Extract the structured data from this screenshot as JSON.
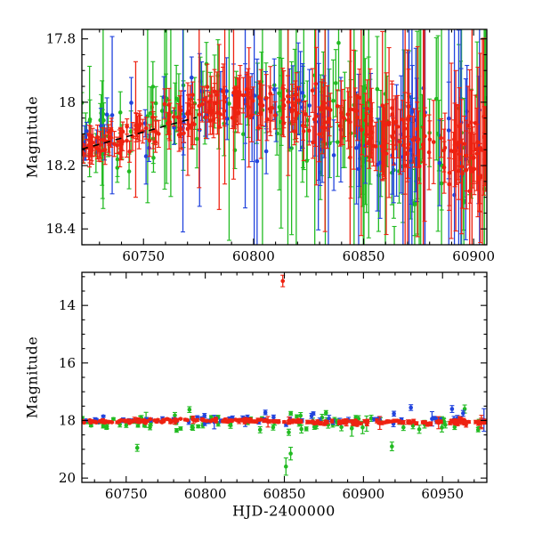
{
  "figure": {
    "ylabel": "Magnitude",
    "xlabel": "HJD-2400000",
    "background": "#ffffff",
    "axis_color": "#000000"
  },
  "chart_data": [
    {
      "id": "top-panel",
      "type": "scatter",
      "title": "",
      "xlabel": "",
      "ylabel": "Magnitude",
      "xlim": [
        60722,
        60906
      ],
      "ylim": [
        17.77,
        18.45
      ],
      "y_inverted_magnitude_axis": true,
      "xticks": [
        60750,
        60800,
        60850,
        60900
      ],
      "xtick_labels": [
        "60750",
        "60800",
        "60850",
        "60900"
      ],
      "yticks": [
        17.8,
        18.0,
        18.2,
        18.4
      ],
      "ytick_labels": [
        "17.8",
        "18",
        "18.2",
        "18.4"
      ],
      "x_minor_step": 10,
      "y_minor_step": 0.05,
      "grid": false,
      "legend": false,
      "fit_line": {
        "color": "#000000",
        "dash": "7 6",
        "x": [
          60722,
          60774
        ],
        "y": [
          18.148,
          18.048
        ]
      },
      "series": [
        {
          "name": "series-green",
          "color": "#22bb22",
          "n": 150,
          "seed": 42,
          "trend": [
            [
              60722,
              18.13
            ],
            [
              60785,
              18.0
            ],
            [
              60850,
              18.09
            ],
            [
              60906,
              18.16
            ]
          ],
          "sigma": [
            0.05,
            0.11
          ],
          "err": [
            0.05,
            0.16
          ],
          "big_err_prob": [
            0.05,
            0.32
          ],
          "big_err_scale": 3.5
        },
        {
          "name": "series-blue",
          "color": "#2244dd",
          "n": 85,
          "seed": 77,
          "trend": [
            [
              60722,
              18.12
            ],
            [
              60790,
              18.02
            ],
            [
              60850,
              18.1
            ],
            [
              60906,
              18.15
            ]
          ],
          "sigma": [
            0.04,
            0.1
          ],
          "err": [
            0.04,
            0.2
          ],
          "big_err_prob": [
            0.04,
            0.35
          ],
          "big_err_scale": 3.5
        },
        {
          "name": "series-red",
          "color": "#ee2211",
          "n": 310,
          "seed": 5,
          "trend": [
            [
              60722,
              18.15
            ],
            [
              60760,
              18.07
            ],
            [
              60790,
              17.99
            ],
            [
              60830,
              18.05
            ],
            [
              60860,
              18.1
            ],
            [
              60906,
              18.17
            ]
          ],
          "sigma": [
            0.022,
            0.055
          ],
          "err": [
            0.03,
            0.1
          ],
          "big_err_prob": [
            0.02,
            0.22
          ],
          "big_err_scale": 3.0
        }
      ],
      "outliers": []
    },
    {
      "id": "bottom-panel",
      "type": "scatter",
      "title": "",
      "xlabel": "HJD-2400000",
      "ylabel": "Magnitude",
      "xlim": [
        60722,
        60978
      ],
      "ylim": [
        12.85,
        20.15
      ],
      "y_inverted_magnitude_axis": true,
      "xticks": [
        60750,
        60800,
        60850,
        60900,
        60950
      ],
      "xtick_labels": [
        "60750",
        "60800",
        "60850",
        "60900",
        "60950"
      ],
      "yticks": [
        14,
        16,
        18,
        20
      ],
      "ytick_labels": [
        "14",
        "16",
        "18",
        "20"
      ],
      "x_minor_step": 10,
      "y_minor_step": 0.5,
      "grid": false,
      "legend": false,
      "fit_line": null,
      "series": [
        {
          "name": "series-green",
          "color": "#22bb22",
          "n": 85,
          "seed": 101,
          "trend": [
            [
              60722,
              18.1
            ],
            [
              60978,
              18.08
            ]
          ],
          "sigma": [
            0.12,
            0.17
          ],
          "err": [
            0.06,
            0.12
          ],
          "big_err_prob": [
            0.08,
            0.1
          ],
          "big_err_scale": 2.5
        },
        {
          "name": "series-blue",
          "color": "#2244dd",
          "n": 60,
          "seed": 202,
          "trend": [
            [
              60722,
              18.0
            ],
            [
              60978,
              17.95
            ]
          ],
          "sigma": [
            0.07,
            0.1
          ],
          "err": [
            0.05,
            0.1
          ],
          "big_err_prob": [
            0.06,
            0.1
          ],
          "big_err_scale": 2.0
        },
        {
          "name": "series-red",
          "color": "#ee2211",
          "n": 220,
          "seed": 303,
          "trend": [
            [
              60722,
              18.05
            ],
            [
              60790,
              17.99
            ],
            [
              60850,
              18.03
            ],
            [
              60905,
              18.08
            ],
            [
              60978,
              18.03
            ]
          ],
          "sigma": [
            0.03,
            0.045
          ],
          "err": [
            0.03,
            0.06
          ],
          "big_err_prob": [
            0.04,
            0.06
          ],
          "big_err_scale": 2.0
        }
      ],
      "outliers": [
        {
          "name": "red-bright-outburst",
          "color": "#ee2211",
          "x": 60849,
          "y": 13.15,
          "err": 0.2
        },
        {
          "name": "green-faint-outlier",
          "color": "#22bb22",
          "x": 60757,
          "y": 18.95,
          "err": 0.12
        },
        {
          "name": "green-faint-outlier",
          "color": "#22bb22",
          "x": 60851,
          "y": 19.6,
          "err": 0.3
        },
        {
          "name": "green-faint-outlier",
          "color": "#22bb22",
          "x": 60854,
          "y": 19.15,
          "err": 0.22
        },
        {
          "name": "green-faint-outlier",
          "color": "#22bb22",
          "x": 60918,
          "y": 18.9,
          "err": 0.15
        },
        {
          "name": "green-bright-outlier",
          "color": "#22bb22",
          "x": 60790,
          "y": 17.62,
          "err": 0.1
        },
        {
          "name": "green-bright-outlier",
          "color": "#22bb22",
          "x": 60964,
          "y": 17.6,
          "err": 0.14
        },
        {
          "name": "blue-bright-outlier",
          "color": "#2244dd",
          "x": 60838,
          "y": 17.72,
          "err": 0.08
        },
        {
          "name": "blue-bright-outlier",
          "color": "#2244dd",
          "x": 60930,
          "y": 17.55,
          "err": 0.1
        },
        {
          "name": "blue-bright-outlier",
          "color": "#2244dd",
          "x": 60956,
          "y": 17.6,
          "err": 0.12
        },
        {
          "name": "blue-bright-outlier",
          "color": "#2244dd",
          "x": 60963,
          "y": 17.75,
          "err": 0.1
        }
      ]
    }
  ]
}
